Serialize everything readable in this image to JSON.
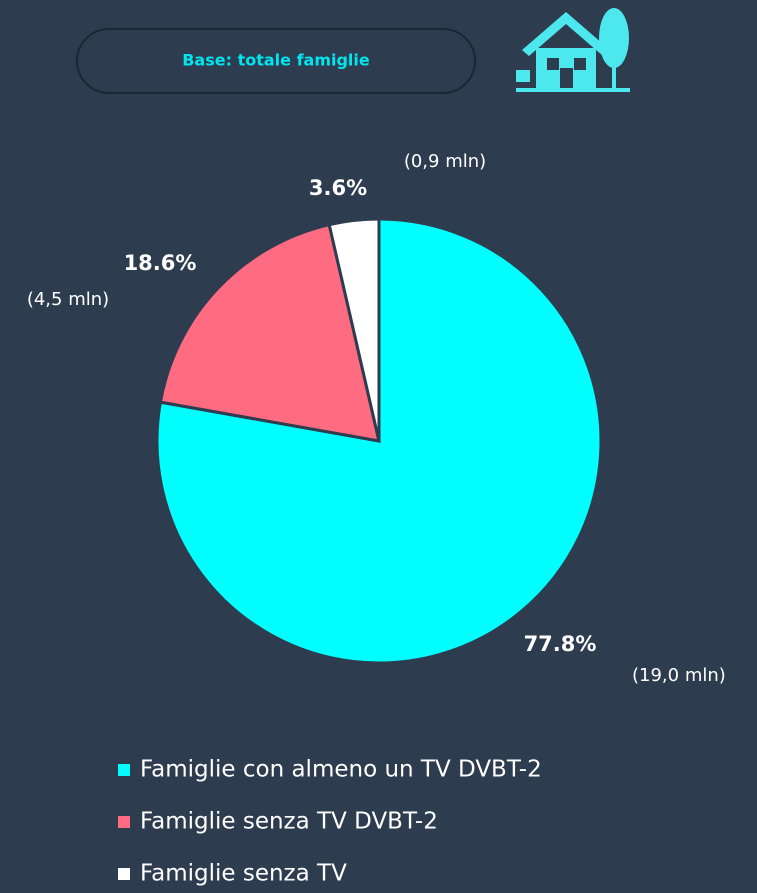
{
  "chart_data": {
    "type": "pie",
    "subtitle": "Base: totale famiglie",
    "categories": [
      "Famiglie con almeno un TV DVBT-2",
      "Famiglie senza TV DVBT-2",
      "Famiglie senza TV"
    ],
    "values": [
      77.8,
      18.6,
      3.6
    ],
    "value_labels": [
      "77.8%",
      "18.6%",
      "3.6%"
    ],
    "annotations": [
      "(19,0 mln)",
      "(4,5 mln)",
      "(0,9 mln)"
    ],
    "colors": [
      "#00ffff",
      "#ff6b81",
      "#ffffff"
    ],
    "legend": "bottom"
  }
}
